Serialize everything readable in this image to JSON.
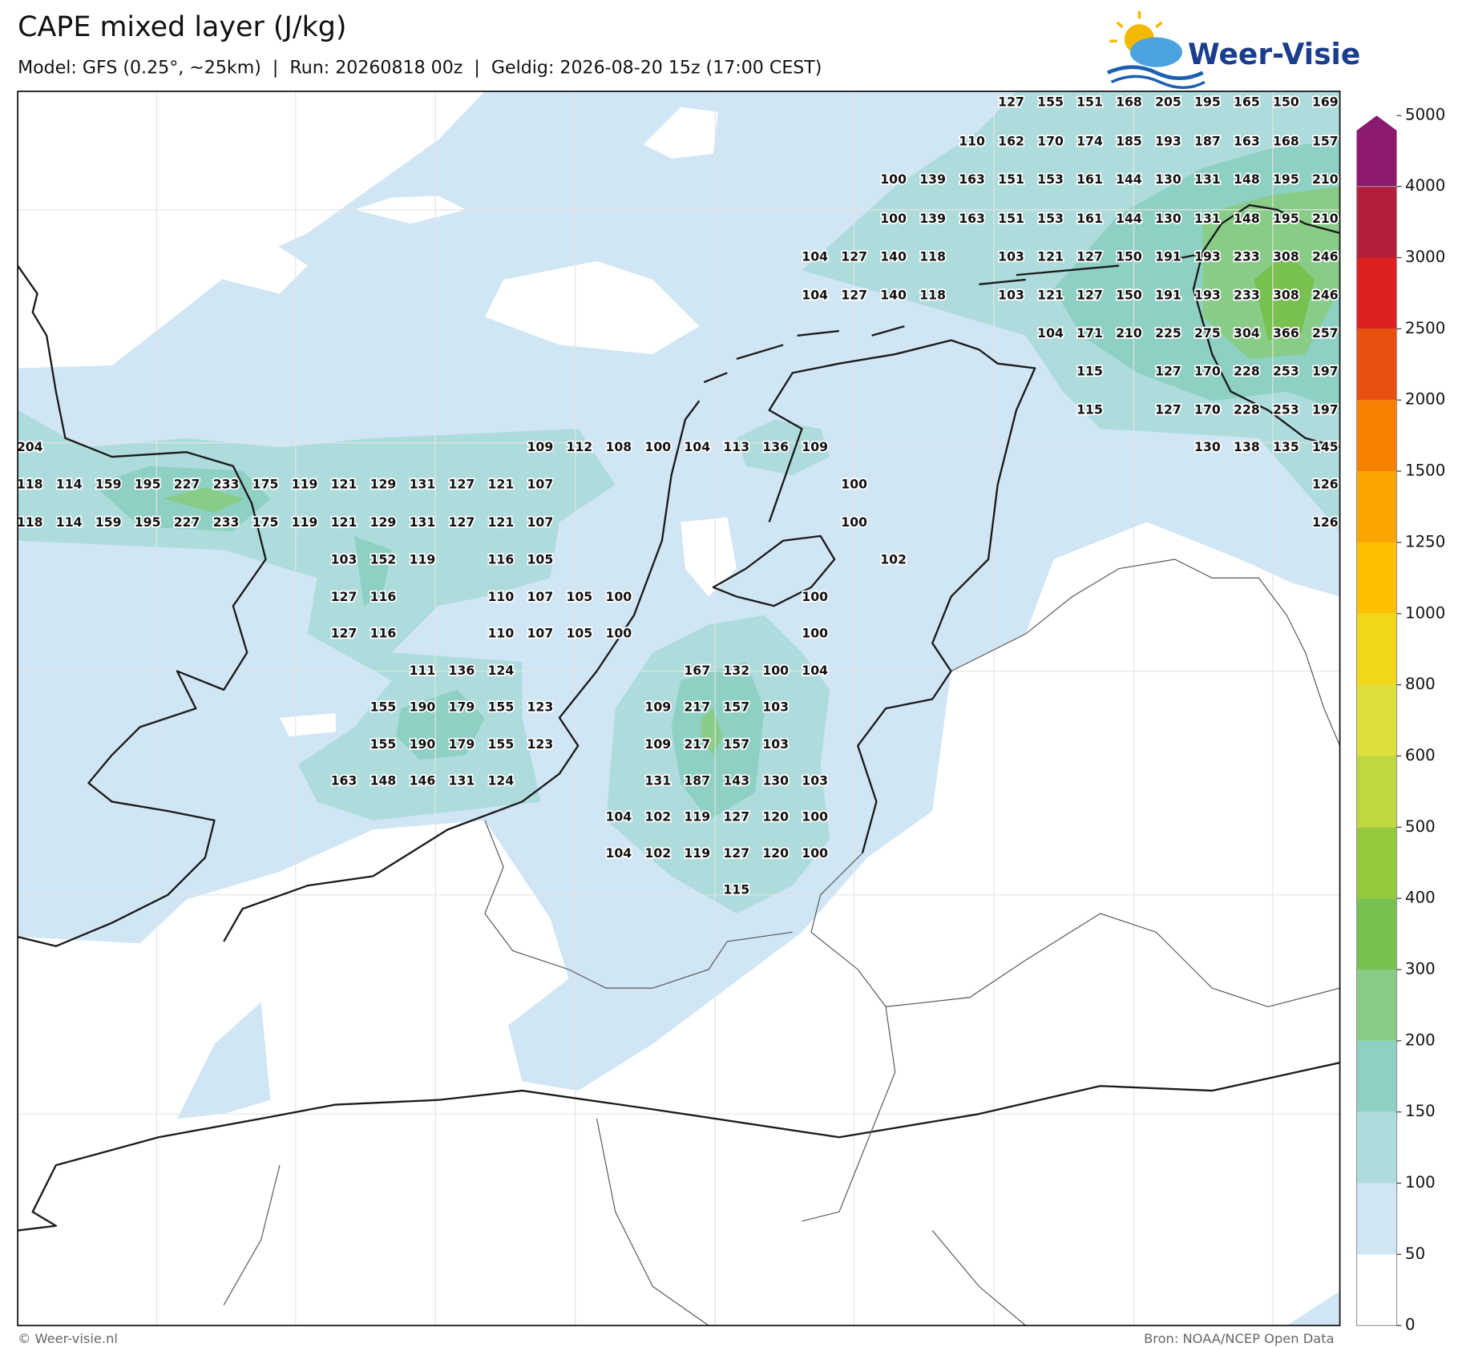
{
  "header": {
    "title": "CAPE mixed layer (J/kg)",
    "subtitle": "Model: GFS (0.25°, ~25km)  |  Run: 20260818 00z  |  Geldig: 2026-08-20 15z (17:00 CEST)",
    "logo": "Weer-Visie"
  },
  "map": {
    "value_grid": [
      [
        null,
        null,
        null,
        null,
        null,
        null,
        null,
        null,
        null,
        null,
        null,
        null,
        null,
        null,
        null,
        null,
        null,
        null,
        null,
        null,
        null,
        null,
        null,
        null,
        null,
        127,
        155,
        151,
        168,
        205,
        195,
        165,
        150,
        169
      ],
      [
        null,
        null,
        null,
        null,
        null,
        null,
        null,
        null,
        null,
        null,
        null,
        null,
        null,
        null,
        null,
        null,
        null,
        null,
        null,
        null,
        null,
        null,
        null,
        null,
        110,
        162,
        170,
        174,
        185,
        193,
        187,
        163,
        168,
        157
      ],
      [
        null,
        null,
        null,
        null,
        null,
        null,
        null,
        null,
        null,
        null,
        null,
        null,
        null,
        null,
        null,
        null,
        null,
        null,
        null,
        null,
        null,
        null,
        100,
        139,
        163,
        151,
        153,
        161,
        144,
        130,
        131,
        148,
        195,
        210
      ],
      [
        null,
        null,
        null,
        null,
        null,
        null,
        null,
        null,
        null,
        null,
        null,
        null,
        null,
        null,
        null,
        null,
        null,
        null,
        null,
        null,
        null,
        null,
        100,
        139,
        163,
        151,
        153,
        161,
        144,
        130,
        131,
        148,
        195,
        210
      ],
      [
        null,
        null,
        null,
        null,
        null,
        null,
        null,
        null,
        null,
        null,
        null,
        null,
        null,
        null,
        null,
        null,
        null,
        null,
        null,
        null,
        104,
        127,
        140,
        118,
        null,
        103,
        121,
        127,
        150,
        191,
        193,
        233,
        308,
        246
      ],
      [
        null,
        null,
        null,
        null,
        null,
        null,
        null,
        null,
        null,
        null,
        null,
        null,
        null,
        null,
        null,
        null,
        null,
        null,
        null,
        null,
        104,
        127,
        140,
        118,
        null,
        103,
        121,
        127,
        150,
        191,
        193,
        233,
        308,
        246
      ],
      [
        null,
        null,
        null,
        null,
        null,
        null,
        null,
        null,
        null,
        null,
        null,
        null,
        null,
        null,
        null,
        null,
        null,
        null,
        null,
        null,
        null,
        null,
        null,
        null,
        null,
        null,
        104,
        171,
        210,
        225,
        275,
        304,
        366,
        257
      ],
      [
        null,
        null,
        null,
        null,
        null,
        null,
        null,
        null,
        null,
        null,
        null,
        null,
        null,
        null,
        null,
        null,
        null,
        null,
        null,
        null,
        null,
        null,
        null,
        null,
        null,
        null,
        null,
        115,
        null,
        127,
        170,
        228,
        253,
        197
      ],
      [
        null,
        null,
        null,
        null,
        null,
        null,
        null,
        null,
        null,
        null,
        null,
        null,
        null,
        null,
        null,
        null,
        null,
        null,
        null,
        null,
        null,
        null,
        null,
        null,
        null,
        null,
        null,
        115,
        null,
        127,
        170,
        228,
        253,
        197
      ],
      [
        204,
        null,
        null,
        null,
        null,
        null,
        null,
        null,
        null,
        null,
        null,
        null,
        null,
        109,
        112,
        108,
        100,
        104,
        113,
        136,
        109,
        null,
        null,
        null,
        null,
        null,
        null,
        null,
        null,
        null,
        130,
        138,
        135,
        145
      ],
      [
        118,
        114,
        159,
        195,
        227,
        233,
        175,
        119,
        121,
        129,
        131,
        127,
        121,
        107,
        null,
        null,
        null,
        null,
        null,
        null,
        null,
        100,
        null,
        null,
        null,
        null,
        null,
        null,
        null,
        null,
        null,
        null,
        null,
        126
      ],
      [
        118,
        114,
        159,
        195,
        227,
        233,
        175,
        119,
        121,
        129,
        131,
        127,
        121,
        107,
        null,
        null,
        null,
        null,
        null,
        null,
        null,
        100,
        null,
        null,
        null,
        null,
        null,
        null,
        null,
        null,
        null,
        null,
        null,
        126
      ],
      [
        null,
        null,
        null,
        null,
        null,
        null,
        null,
        null,
        103,
        152,
        119,
        null,
        116,
        105,
        null,
        null,
        null,
        null,
        null,
        null,
        null,
        null,
        102,
        null,
        null,
        null,
        null,
        null,
        null,
        null,
        null,
        null,
        null,
        null
      ],
      [
        null,
        null,
        null,
        null,
        null,
        null,
        null,
        null,
        127,
        116,
        null,
        null,
        110,
        107,
        105,
        100,
        null,
        null,
        null,
        null,
        100,
        null,
        null,
        null,
        null,
        null,
        null,
        null,
        null,
        null,
        null,
        null,
        null,
        null
      ],
      [
        null,
        null,
        null,
        null,
        null,
        null,
        null,
        null,
        127,
        116,
        null,
        null,
        110,
        107,
        105,
        100,
        null,
        null,
        null,
        null,
        100,
        null,
        null,
        null,
        null,
        null,
        null,
        null,
        null,
        null,
        null,
        null,
        null,
        null
      ],
      [
        null,
        null,
        null,
        null,
        null,
        null,
        null,
        null,
        null,
        null,
        111,
        136,
        124,
        null,
        null,
        null,
        null,
        167,
        132,
        100,
        104,
        null,
        null,
        null,
        null,
        null,
        null,
        null,
        null,
        null,
        null,
        null,
        null,
        null
      ],
      [
        null,
        null,
        null,
        null,
        null,
        null,
        null,
        null,
        null,
        155,
        190,
        179,
        155,
        123,
        null,
        null,
        109,
        217,
        157,
        103,
        null,
        null,
        null,
        null,
        null,
        null,
        null,
        null,
        null,
        null,
        null,
        null,
        null,
        null
      ],
      [
        null,
        null,
        null,
        null,
        null,
        null,
        null,
        null,
        null,
        155,
        190,
        179,
        155,
        123,
        null,
        null,
        109,
        217,
        157,
        103,
        null,
        null,
        null,
        null,
        null,
        null,
        null,
        null,
        null,
        null,
        null,
        null,
        null,
        null
      ],
      [
        null,
        null,
        null,
        null,
        null,
        null,
        null,
        null,
        163,
        148,
        146,
        131,
        124,
        null,
        null,
        null,
        131,
        187,
        143,
        130,
        103,
        null,
        null,
        null,
        null,
        null,
        null,
        null,
        null,
        null,
        null,
        null,
        null,
        null
      ],
      [
        null,
        null,
        null,
        null,
        null,
        null,
        null,
        null,
        null,
        null,
        null,
        null,
        null,
        null,
        null,
        104,
        102,
        119,
        127,
        120,
        100,
        null,
        null,
        null,
        null,
        null,
        null,
        null,
        null,
        null,
        null,
        null,
        null,
        null
      ],
      [
        null,
        null,
        null,
        null,
        null,
        null,
        null,
        null,
        null,
        null,
        null,
        null,
        null,
        null,
        null,
        104,
        102,
        119,
        127,
        120,
        100,
        null,
        null,
        null,
        null,
        null,
        null,
        null,
        null,
        null,
        null,
        null,
        null,
        null
      ],
      [
        null,
        null,
        null,
        null,
        null,
        null,
        null,
        null,
        null,
        null,
        null,
        null,
        null,
        null,
        null,
        null,
        null,
        null,
        115,
        null,
        null,
        null,
        null,
        null,
        null,
        null,
        null,
        null,
        null,
        null,
        null,
        null,
        null,
        null
      ]
    ]
  },
  "colorbar": {
    "ticks": [
      0,
      50,
      100,
      150,
      200,
      300,
      400,
      500,
      600,
      800,
      1000,
      1250,
      1500,
      2000,
      2500,
      3000,
      4000,
      5000
    ],
    "colors": [
      "#ffffff",
      "#d0e6f5",
      "#aedcdc",
      "#8ed0c4",
      "#88cc88",
      "#78c050",
      "#96c83c",
      "#c0d840",
      "#dde03c",
      "#f0d818",
      "#fcc000",
      "#fca400",
      "#f88000",
      "#e85010",
      "#dc2020",
      "#b41e3c",
      "#8c1a6e"
    ]
  },
  "footer": {
    "left": "© Weer-visie.nl",
    "right": "Bron: NOAA/NCEP Open Data"
  }
}
